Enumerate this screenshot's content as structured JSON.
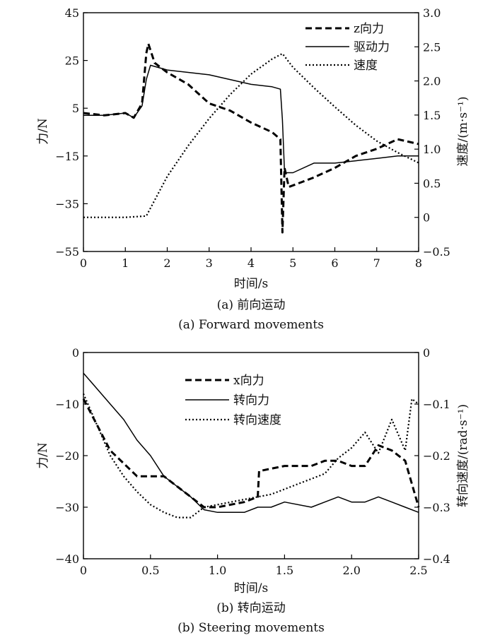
{
  "chart_data": [
    {
      "type": "line",
      "caption_cn": "(a) 前向运动",
      "caption_en": "(a) Forward movements",
      "xlabel": "时间/s",
      "ylabel_left": "力/N",
      "ylabel_right": "速度/(m·s⁻¹)",
      "xlim": [
        0,
        8
      ],
      "ylim_left": [
        -55,
        45
      ],
      "ylim_right": [
        -0.5,
        3.0
      ],
      "x_ticks": [
        0,
        1,
        2,
        3,
        4,
        5,
        6,
        7,
        8
      ],
      "y_ticks_left": [
        -55,
        -35,
        -15,
        5,
        25,
        45
      ],
      "y_ticks_right": [
        -0.5,
        0,
        0.5,
        1.0,
        1.5,
        2.0,
        2.5,
        3.0
      ],
      "y_tick_labels_left": [
        "−55",
        "−35",
        "−15",
        "5",
        "25",
        "45"
      ],
      "y_tick_labels_right": [
        "−0.5",
        "0",
        "0.5",
        "1.0",
        "1.5",
        "2.0",
        "2.5",
        "3.0"
      ],
      "legend_position": "top-right",
      "series": [
        {
          "name": "z向力",
          "style": "dashed",
          "axis": "left",
          "x": [
            0,
            0.5,
            1.0,
            1.2,
            1.4,
            1.5,
            1.55,
            1.7,
            2.0,
            2.5,
            3.0,
            3.5,
            4.0,
            4.5,
            4.7,
            4.75,
            4.8,
            4.9,
            5.2,
            5.5,
            6.0,
            6.5,
            7.0,
            7.5,
            8.0
          ],
          "y": [
            3,
            2,
            3,
            1,
            7,
            28,
            32,
            24,
            20,
            15,
            7,
            4,
            -1,
            -5,
            -8,
            -47,
            -20,
            -28,
            -26,
            -24,
            -20,
            -15,
            -12,
            -8,
            -10
          ]
        },
        {
          "name": "驱动力",
          "style": "solid",
          "axis": "left",
          "x": [
            0,
            0.5,
            1.0,
            1.2,
            1.4,
            1.5,
            1.6,
            2.0,
            2.5,
            3.0,
            3.5,
            4.0,
            4.5,
            4.7,
            4.75,
            4.8,
            5.0,
            5.5,
            6.0,
            6.5,
            7.0,
            7.5,
            8.0
          ],
          "y": [
            2,
            2,
            3,
            1,
            6,
            17,
            23,
            21,
            20,
            19,
            17,
            15,
            14,
            13,
            0,
            -22,
            -22,
            -18,
            -18,
            -17,
            -16,
            -15,
            -15
          ]
        },
        {
          "name": "速度",
          "style": "dotted",
          "axis": "right",
          "x": [
            0,
            0.5,
            1.0,
            1.5,
            2.0,
            2.5,
            3.0,
            3.5,
            4.0,
            4.5,
            4.75,
            5.0,
            5.5,
            6.0,
            6.5,
            7.0,
            7.5,
            8.0
          ],
          "y": [
            0.0,
            0.0,
            0.0,
            0.02,
            0.6,
            1.05,
            1.45,
            1.8,
            2.1,
            2.32,
            2.4,
            2.2,
            1.9,
            1.62,
            1.35,
            1.12,
            0.95,
            0.8
          ]
        }
      ]
    },
    {
      "type": "line",
      "caption_cn": "(b) 转向运动",
      "caption_en": "(b) Steering movements",
      "xlabel": "时间/s",
      "ylabel_left": "力/N",
      "ylabel_right": "转向速度/(rad·s⁻¹)",
      "xlim": [
        0,
        2.5
      ],
      "ylim_left": [
        -40,
        0
      ],
      "ylim_right": [
        -0.4,
        0
      ],
      "x_ticks": [
        0,
        0.5,
        1.0,
        1.5,
        2.0,
        2.5
      ],
      "y_ticks_left": [
        -40,
        -30,
        -20,
        -10,
        0
      ],
      "y_ticks_right": [
        -0.4,
        -0.3,
        -0.2,
        -0.1,
        0
      ],
      "x_tick_labels": [
        "0",
        "0.5",
        "1.0",
        "1.5",
        "2.0",
        "2.5"
      ],
      "y_tick_labels_left": [
        "−40",
        "−30",
        "−20",
        "−10",
        "0"
      ],
      "y_tick_labels_right": [
        "−0.4",
        "−0.3",
        "−0.2",
        "−0.1",
        "0"
      ],
      "legend_position": "top-center",
      "series": [
        {
          "name": "x向力",
          "style": "dashed",
          "axis": "left",
          "x": [
            0,
            0.1,
            0.2,
            0.4,
            0.5,
            0.6,
            0.8,
            0.9,
            1.0,
            1.2,
            1.3,
            1.31,
            1.5,
            1.7,
            1.8,
            1.9,
            2.0,
            2.1,
            2.2,
            2.3,
            2.4,
            2.5
          ],
          "y": [
            -9,
            -14,
            -19,
            -24,
            -24,
            -24,
            -28,
            -30,
            -30,
            -29,
            -28,
            -23,
            -22,
            -22,
            -21,
            -21,
            -22,
            -22,
            -18,
            -19,
            -21,
            -30
          ]
        },
        {
          "name": "转向力",
          "style": "solid",
          "axis": "left",
          "x": [
            0,
            0.1,
            0.2,
            0.3,
            0.4,
            0.5,
            0.6,
            0.7,
            0.8,
            0.9,
            1.0,
            1.2,
            1.3,
            1.4,
            1.5,
            1.7,
            1.8,
            1.9,
            2.0,
            2.1,
            2.2,
            2.3,
            2.4,
            2.5
          ],
          "y": [
            -4,
            -7,
            -10,
            -13,
            -17,
            -20,
            -24,
            -26,
            -28,
            -30.5,
            -31,
            -31,
            -30,
            -30,
            -29,
            -30,
            -29,
            -28,
            -29,
            -29,
            -28,
            -29,
            -30,
            -31
          ]
        },
        {
          "name": "转向速度",
          "style": "dotted",
          "axis": "right",
          "x": [
            0,
            0.1,
            0.2,
            0.3,
            0.4,
            0.5,
            0.6,
            0.7,
            0.8,
            0.9,
            1.0,
            1.1,
            1.2,
            1.3,
            1.4,
            1.5,
            1.6,
            1.7,
            1.8,
            1.9,
            2.0,
            2.1,
            2.2,
            2.3,
            2.4,
            2.45,
            2.5
          ],
          "y": [
            -0.08,
            -0.14,
            -0.2,
            -0.24,
            -0.27,
            -0.295,
            -0.31,
            -0.32,
            -0.32,
            -0.3,
            -0.295,
            -0.29,
            -0.285,
            -0.28,
            -0.275,
            -0.265,
            -0.255,
            -0.245,
            -0.235,
            -0.205,
            -0.185,
            -0.155,
            -0.195,
            -0.13,
            -0.19,
            -0.09,
            -0.1
          ]
        }
      ]
    }
  ]
}
